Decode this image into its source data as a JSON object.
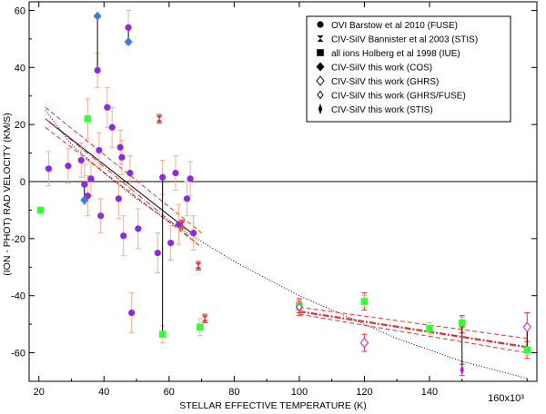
{
  "chart_data": {
    "type": "scatter",
    "title": "",
    "xlabel": "STELLAR EFFECTIVE TEMPERATURE (K)",
    "ylabel": "(ION - PHOT) RAD VELOCITY (KM/S)",
    "x_multiplier_label": "160x10³",
    "xlim": [
      17,
      173
    ],
    "ylim": [
      -70,
      63
    ],
    "xticks": [
      20,
      40,
      60,
      80,
      100,
      120,
      140
    ],
    "xtick_labels": [
      "20",
      "40",
      "60",
      "80",
      "100",
      "120",
      "140"
    ],
    "yticks": [
      -60,
      -40,
      -20,
      0,
      20,
      40,
      60
    ],
    "ytick_labels": [
      "-60",
      "-40",
      "-20",
      "0",
      "20",
      "40",
      "60"
    ],
    "zero_line": true,
    "legend_position": "top-right",
    "legend": [
      {
        "marker": "circle",
        "label": "OVI Barstow et al 2010 (FUSE)"
      },
      {
        "marker": "hourglass",
        "label": "CIV-SiIV Bannister et al 2003 (STIS)"
      },
      {
        "marker": "square",
        "label": "all ions Holberg et al 1998 (IUE)"
      },
      {
        "marker": "diamond",
        "label": "CIV-SiIV this work (COS)"
      },
      {
        "marker": "diamond-open",
        "label": "CIV-SiIV this work (GHRS)"
      },
      {
        "marker": "diamond-open-small",
        "label": "CIV-SiIV this work (GHRS/FUSE)"
      },
      {
        "marker": "diamond-thin",
        "label": "CIV-SiIV this work (STIS)"
      }
    ],
    "series": [
      {
        "name": "OVI Barstow et al 2010 (FUSE)",
        "marker": "circle",
        "color": "#8a2be2",
        "error_color": "#f2b08a",
        "points": [
          {
            "x": 23,
            "y": 4.5,
            "err": 6
          },
          {
            "x": 29,
            "y": 5.5,
            "err": 6
          },
          {
            "x": 33,
            "y": 7.5,
            "err": 6
          },
          {
            "x": 34,
            "y": -1,
            "err": 7
          },
          {
            "x": 35,
            "y": -5,
            "err": 7
          },
          {
            "x": 36,
            "y": 1,
            "err": 6
          },
          {
            "x": 38,
            "y": 39,
            "err": 6
          },
          {
            "x": 38.5,
            "y": 11,
            "err": 6
          },
          {
            "x": 39,
            "y": -12,
            "err": 6
          },
          {
            "x": 41,
            "y": 26,
            "err": 7
          },
          {
            "x": 42.5,
            "y": 19,
            "err": 7
          },
          {
            "x": 44.5,
            "y": -6,
            "err": 7
          },
          {
            "x": 45,
            "y": 12,
            "err": 6
          },
          {
            "x": 45.5,
            "y": 8.5,
            "err": 6
          },
          {
            "x": 46,
            "y": -19,
            "err": 7
          },
          {
            "x": 47.5,
            "y": 54,
            "err": 6
          },
          {
            "x": 48,
            "y": 3,
            "err": 6
          },
          {
            "x": 48.5,
            "y": -46,
            "err": 7
          },
          {
            "x": 50.5,
            "y": -16.5,
            "err": 7
          },
          {
            "x": 56.5,
            "y": -25,
            "err": 7
          },
          {
            "x": 58,
            "y": 1.5,
            "err": 6
          },
          {
            "x": 60.5,
            "y": -21.5,
            "err": 6
          },
          {
            "x": 62,
            "y": 3,
            "err": 6
          },
          {
            "x": 63,
            "y": -15,
            "err": 7
          },
          {
            "x": 65.5,
            "y": -6,
            "err": 6
          },
          {
            "x": 66.5,
            "y": 1,
            "err": 6
          },
          {
            "x": 67.5,
            "y": -18,
            "err": 6
          }
        ]
      },
      {
        "name": "CIV-SiIV Bannister et al 2003 (STIS)",
        "marker": "hourglass",
        "color": "#e03030",
        "error_color": "#e03030",
        "points": [
          {
            "x": 57,
            "y": 22,
            "err": 1.5
          },
          {
            "x": 64,
            "y": -15,
            "err": 1.5
          },
          {
            "x": 69,
            "y": -29.5,
            "err": 1.5
          },
          {
            "x": 71,
            "y": -48,
            "err": 1.5
          },
          {
            "x": 100,
            "y": -44,
            "err": 3
          },
          {
            "x": 120,
            "y": -42,
            "err": 3
          },
          {
            "x": 150,
            "y": -50,
            "err": 3
          },
          {
            "x": 170,
            "y": -59,
            "err": 3
          }
        ]
      },
      {
        "name": "all ions Holberg et al 1998 (IUE)",
        "marker": "square",
        "color": "#33ff33",
        "error_color": "#f2b08a",
        "points": [
          {
            "x": 20.5,
            "y": -10,
            "err": 0
          },
          {
            "x": 35,
            "y": 22,
            "err": 7
          },
          {
            "x": 58,
            "y": -53.5,
            "err": 3
          },
          {
            "x": 69.5,
            "y": -51,
            "err": 3
          },
          {
            "x": 100,
            "y": -43.5,
            "err": 2
          },
          {
            "x": 120,
            "y": -42,
            "err": 2
          },
          {
            "x": 140,
            "y": -51.5,
            "err": 2
          },
          {
            "x": 150,
            "y": -49.5,
            "err": 2
          },
          {
            "x": 170,
            "y": -59,
            "err": 2
          }
        ]
      },
      {
        "name": "CIV-SiIV this work (COS)",
        "marker": "diamond",
        "color": "#3a7ee0",
        "error_color": "#000000",
        "points": [
          {
            "x": 34,
            "y": -6.5,
            "err": 0
          },
          {
            "x": 38,
            "y": 58,
            "err": 0
          },
          {
            "x": 47.5,
            "y": 49,
            "err": 0
          }
        ]
      },
      {
        "name": "CIV-SiIV this work (GHRS)",
        "marker": "diamond-open",
        "color": "#c020c0",
        "error_color": "#e03030",
        "points": [
          {
            "x": 120,
            "y": -56.5,
            "err": 3
          },
          {
            "x": 170,
            "y": -51,
            "err": 5
          }
        ]
      },
      {
        "name": "CIV-SiIV this work (GHRS/FUSE)",
        "marker": "diamond-open-small",
        "color": "#c020c0",
        "error_color": "#e03030",
        "points": [
          {
            "x": 100,
            "y": -44,
            "err": 2
          }
        ]
      },
      {
        "name": "CIV-SiIV this work (STIS)",
        "marker": "diamond-thin",
        "color": "#c020c0",
        "error_color": "#e03030",
        "points": [
          {
            "x": 150,
            "y": -66,
            "err": 2
          }
        ]
      }
    ],
    "connectors": [
      {
        "x": 38,
        "y1": 39,
        "y2": 58
      },
      {
        "x": 47.5,
        "y1": 49,
        "y2": 54
      },
      {
        "x": 34,
        "y1": -6.5,
        "y2": -1
      },
      {
        "x": 58,
        "y1": -53.5,
        "y2": 1.5
      },
      {
        "x": 150,
        "y1": -66,
        "y2": -50
      },
      {
        "x": 170,
        "y1": -59,
        "y2": -51
      }
    ],
    "fits": [
      {
        "name": "fit-black-solid",
        "style": "solid",
        "color": "#000000",
        "points": [
          [
            22,
            22
          ],
          [
            68,
            -19
          ]
        ]
      },
      {
        "name": "fit-red-dashed-upper",
        "style": "dashed",
        "color": "#e03030",
        "points": [
          [
            22,
            26
          ],
          [
            70,
            -18
          ]
        ]
      },
      {
        "name": "fit-red-dashed-lower",
        "style": "dashed",
        "color": "#e03030",
        "points": [
          [
            22,
            19
          ],
          [
            70,
            -23
          ]
        ]
      },
      {
        "name": "fit-red-dashdot",
        "style": "dashdot",
        "color": "#e03030",
        "points": [
          [
            22,
            22
          ],
          [
            68,
            -21
          ]
        ]
      },
      {
        "name": "fit-black-dotted-curve",
        "style": "dotted",
        "color": "#000000",
        "points": [
          [
            22,
            25
          ],
          [
            30,
            13
          ],
          [
            40,
            3
          ],
          [
            50,
            -6
          ],
          [
            60,
            -14
          ],
          [
            70,
            -21
          ],
          [
            80,
            -28
          ],
          [
            90,
            -34
          ],
          [
            100,
            -40
          ],
          [
            110,
            -45
          ],
          [
            120,
            -50
          ],
          [
            130,
            -55
          ],
          [
            140,
            -59
          ],
          [
            150,
            -63
          ],
          [
            160,
            -66
          ],
          [
            170,
            -69
          ]
        ]
      },
      {
        "name": "fit-red-thick-dashdot",
        "style": "thickdashdot",
        "color": "#e03030",
        "points": [
          [
            100,
            -45.5
          ],
          [
            170,
            -58
          ]
        ]
      },
      {
        "name": "fit-red-dashed-high-upper",
        "style": "dashed",
        "color": "#e03030",
        "points": [
          [
            100,
            -44
          ],
          [
            170,
            -55
          ]
        ]
      },
      {
        "name": "fit-red-dashed-high-lower",
        "style": "dashed",
        "color": "#e03030",
        "points": [
          [
            100,
            -46.5
          ],
          [
            170,
            -60
          ]
        ]
      }
    ]
  }
}
